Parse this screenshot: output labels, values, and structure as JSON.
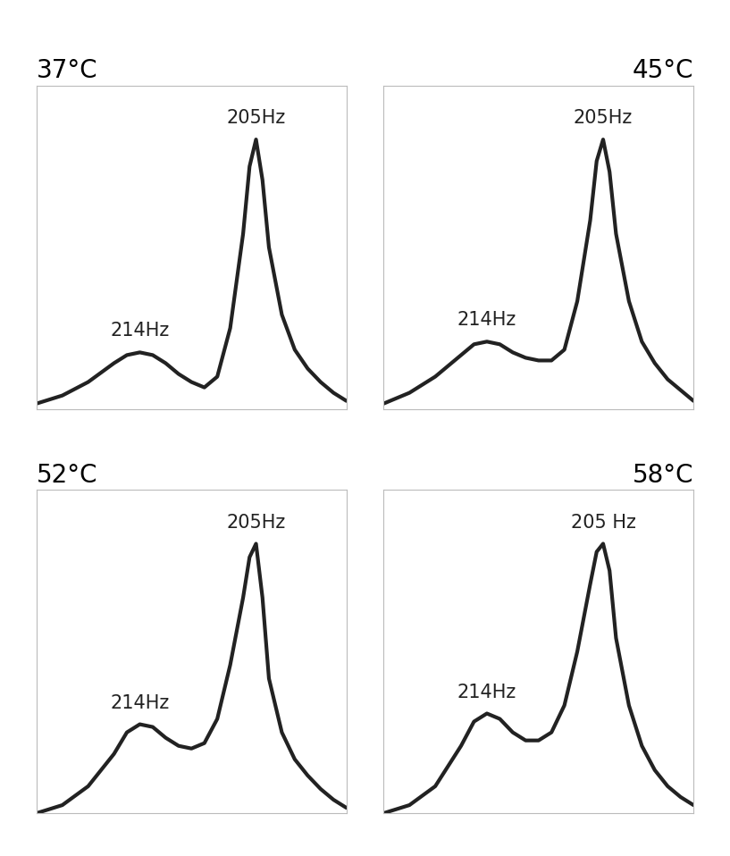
{
  "chart_data": [
    {
      "type": "line",
      "title": "37°C",
      "color": "#222222",
      "tick_labels": false,
      "xlim": [
        222,
        198
      ],
      "ylim": [
        0,
        1.2
      ],
      "x": [
        222,
        220,
        218,
        216,
        215,
        214,
        213,
        212,
        211,
        210,
        209,
        208,
        207,
        206,
        205.5,
        205,
        204.5,
        204,
        203,
        202,
        201,
        200,
        199,
        198
      ],
      "values": [
        0.02,
        0.05,
        0.1,
        0.17,
        0.2,
        0.21,
        0.2,
        0.17,
        0.13,
        0.1,
        0.08,
        0.12,
        0.3,
        0.65,
        0.9,
        1.0,
        0.85,
        0.6,
        0.35,
        0.22,
        0.15,
        0.1,
        0.06,
        0.03
      ],
      "annotations": [
        {
          "text": "214Hz",
          "x": 214,
          "y": 0.21
        },
        {
          "text": "205Hz",
          "x": 205,
          "y": 1.0
        }
      ]
    },
    {
      "type": "line",
      "title": "45°C",
      "color": "#222222",
      "tick_labels": false,
      "xlim": [
        222,
        198
      ],
      "ylim": [
        0,
        1.2
      ],
      "x": [
        222,
        220,
        218,
        216,
        215,
        214,
        213,
        212,
        211,
        210,
        209,
        208,
        207,
        206,
        205.5,
        205,
        204.5,
        204,
        203,
        202,
        201,
        200,
        199,
        198
      ],
      "values": [
        0.02,
        0.06,
        0.12,
        0.2,
        0.24,
        0.25,
        0.24,
        0.21,
        0.19,
        0.18,
        0.18,
        0.22,
        0.4,
        0.7,
        0.92,
        1.0,
        0.88,
        0.65,
        0.4,
        0.25,
        0.17,
        0.11,
        0.07,
        0.03
      ],
      "annotations": [
        {
          "text": "214Hz",
          "x": 214,
          "y": 0.25
        },
        {
          "text": "205Hz",
          "x": 205,
          "y": 1.0
        }
      ]
    },
    {
      "type": "line",
      "title": "52°C",
      "color": "#222222",
      "tick_labels": false,
      "xlim": [
        222,
        198
      ],
      "ylim": [
        0,
        1.2
      ],
      "x": [
        222,
        220,
        218,
        216,
        215,
        214,
        213,
        212,
        211,
        210,
        209,
        208,
        207,
        206,
        205.5,
        205,
        204.5,
        204,
        203,
        202,
        201,
        200,
        199,
        198
      ],
      "values": [
        0.0,
        0.03,
        0.1,
        0.22,
        0.3,
        0.33,
        0.32,
        0.28,
        0.25,
        0.24,
        0.26,
        0.35,
        0.55,
        0.8,
        0.95,
        1.0,
        0.8,
        0.5,
        0.3,
        0.2,
        0.14,
        0.09,
        0.05,
        0.02
      ],
      "annotations": [
        {
          "text": "214Hz",
          "x": 214,
          "y": 0.33
        },
        {
          "text": "205Hz",
          "x": 205,
          "y": 1.0
        }
      ]
    },
    {
      "type": "line",
      "title": "58°C",
      "color": "#222222",
      "tick_labels": false,
      "xlim": [
        222,
        198
      ],
      "ylim": [
        0,
        1.2
      ],
      "x": [
        222,
        220,
        218,
        216,
        215,
        214,
        213,
        212,
        211,
        210,
        209,
        208,
        207,
        206,
        205.5,
        205,
        204.5,
        204,
        203,
        202,
        201,
        200,
        199,
        198
      ],
      "values": [
        0.0,
        0.03,
        0.1,
        0.25,
        0.34,
        0.37,
        0.35,
        0.3,
        0.27,
        0.27,
        0.3,
        0.4,
        0.6,
        0.85,
        0.97,
        1.0,
        0.9,
        0.65,
        0.4,
        0.25,
        0.16,
        0.1,
        0.06,
        0.03
      ],
      "annotations": [
        {
          "text": "214Hz",
          "x": 214,
          "y": 0.37
        },
        {
          "text": "205 Hz",
          "x": 205,
          "y": 1.0
        }
      ]
    }
  ]
}
